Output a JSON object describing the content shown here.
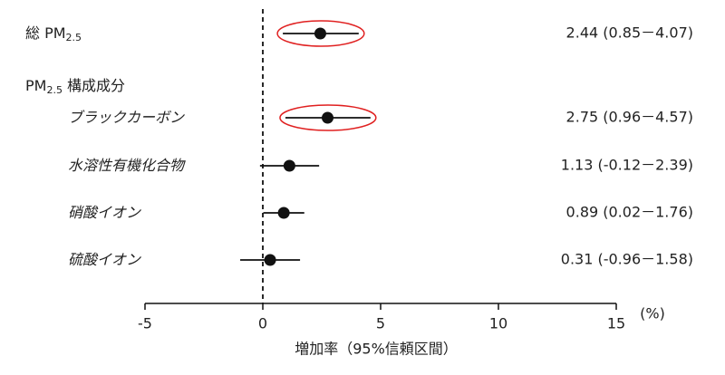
{
  "chart_data": {
    "type": "forest",
    "xlabel": "増加率（95%信頼区間）",
    "xunit": "(%)",
    "xlim": [
      -5,
      15
    ],
    "xticks": [
      -5,
      0,
      5,
      10,
      15
    ],
    "reference": 0,
    "color": "#111111",
    "highlight_color": "#e02020",
    "rows": [
      {
        "label": [
          {
            "text": "総 PM"
          },
          {
            "text": "2.5",
            "sub": true
          }
        ],
        "value": 2.44,
        "lower": 0.85,
        "upper": 4.07,
        "value_label": "2.44 (0.85－4.07)",
        "highlight": true,
        "italic": false
      },
      {
        "label": [
          {
            "text": "PM"
          },
          {
            "text": "2.5",
            "sub": true
          },
          {
            "text": " 構成成分"
          }
        ],
        "italic": false
      },
      {
        "label": [
          {
            "text": "ブラックカーボン"
          }
        ],
        "value": 2.75,
        "lower": 0.96,
        "upper": 4.57,
        "value_label": "2.75 (0.96－4.57)",
        "highlight": true,
        "italic": true
      },
      {
        "label": [
          {
            "text": "水溶性有機化合物"
          }
        ],
        "value": 1.13,
        "lower": -0.12,
        "upper": 2.39,
        "value_label": "1.13 (-0.12－2.39)",
        "highlight": false,
        "italic": true
      },
      {
        "label": [
          {
            "text": "硝酸イオン"
          }
        ],
        "value": 0.89,
        "lower": 0.02,
        "upper": 1.76,
        "value_label": "0.89 (0.02－1.76)",
        "highlight": false,
        "italic": true
      },
      {
        "label": [
          {
            "text": "硫酸イオン"
          }
        ],
        "value": 0.31,
        "lower": -0.96,
        "upper": 1.58,
        "value_label": "0.31 (-0.96－1.58)",
        "highlight": false,
        "italic": true
      }
    ]
  }
}
